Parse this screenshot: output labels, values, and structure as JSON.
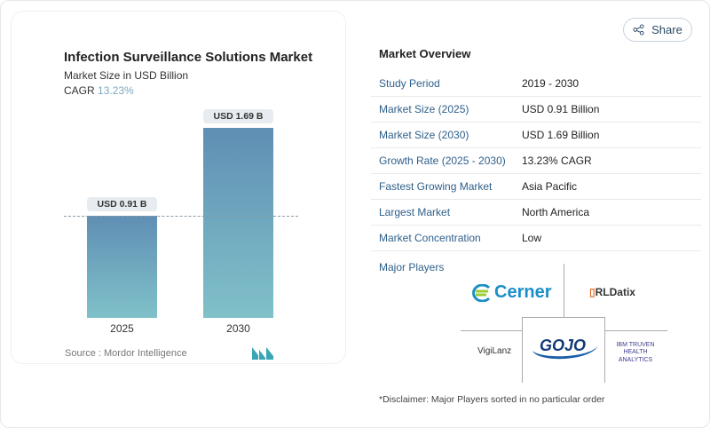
{
  "header": {
    "share_label": "Share",
    "share_icon": "share-icon"
  },
  "chart_data": {
    "type": "bar",
    "title": "Infection Surveillance Solutions Market",
    "subtitle": "Market Size in USD Billion",
    "cagr_label": "CAGR",
    "cagr_value": "13.23%",
    "categories": [
      "2025",
      "2030"
    ],
    "values": [
      0.91,
      1.69
    ],
    "data_labels": [
      "USD 0.91 B",
      "USD 1.69 B"
    ],
    "colors": {
      "bar_top": "#5f8fb4",
      "bar_bottom": "#80c1c9"
    },
    "grid": false,
    "reference_line": "dashed at 2025 value",
    "source": "Source :  Mordor Intelligence"
  },
  "overview": {
    "title": "Market Overview",
    "rows": [
      {
        "label": "Study Period",
        "value": "2019 - 2030"
      },
      {
        "label": "Market Size (2025)",
        "value": "USD 0.91 Billion"
      },
      {
        "label": "Market Size (2030)",
        "value": "USD 1.69 Billion"
      },
      {
        "label": "Growth Rate (2025 - 2030)",
        "value": "13.23% CAGR"
      },
      {
        "label": "Fastest Growing Market",
        "value": "Asia Pacific"
      },
      {
        "label": "Largest Market",
        "value": "North America"
      },
      {
        "label": "Market Concentration",
        "value": "Low"
      }
    ],
    "major_players_label": "Major Players",
    "players": [
      "Cerner",
      "RLDatix",
      "VigiLanz",
      "GOJO",
      "IBM TRUVEN HEALTH ANALYTICS"
    ],
    "disclaimer": "*Disclaimer: Major Players sorted in no particular order"
  }
}
